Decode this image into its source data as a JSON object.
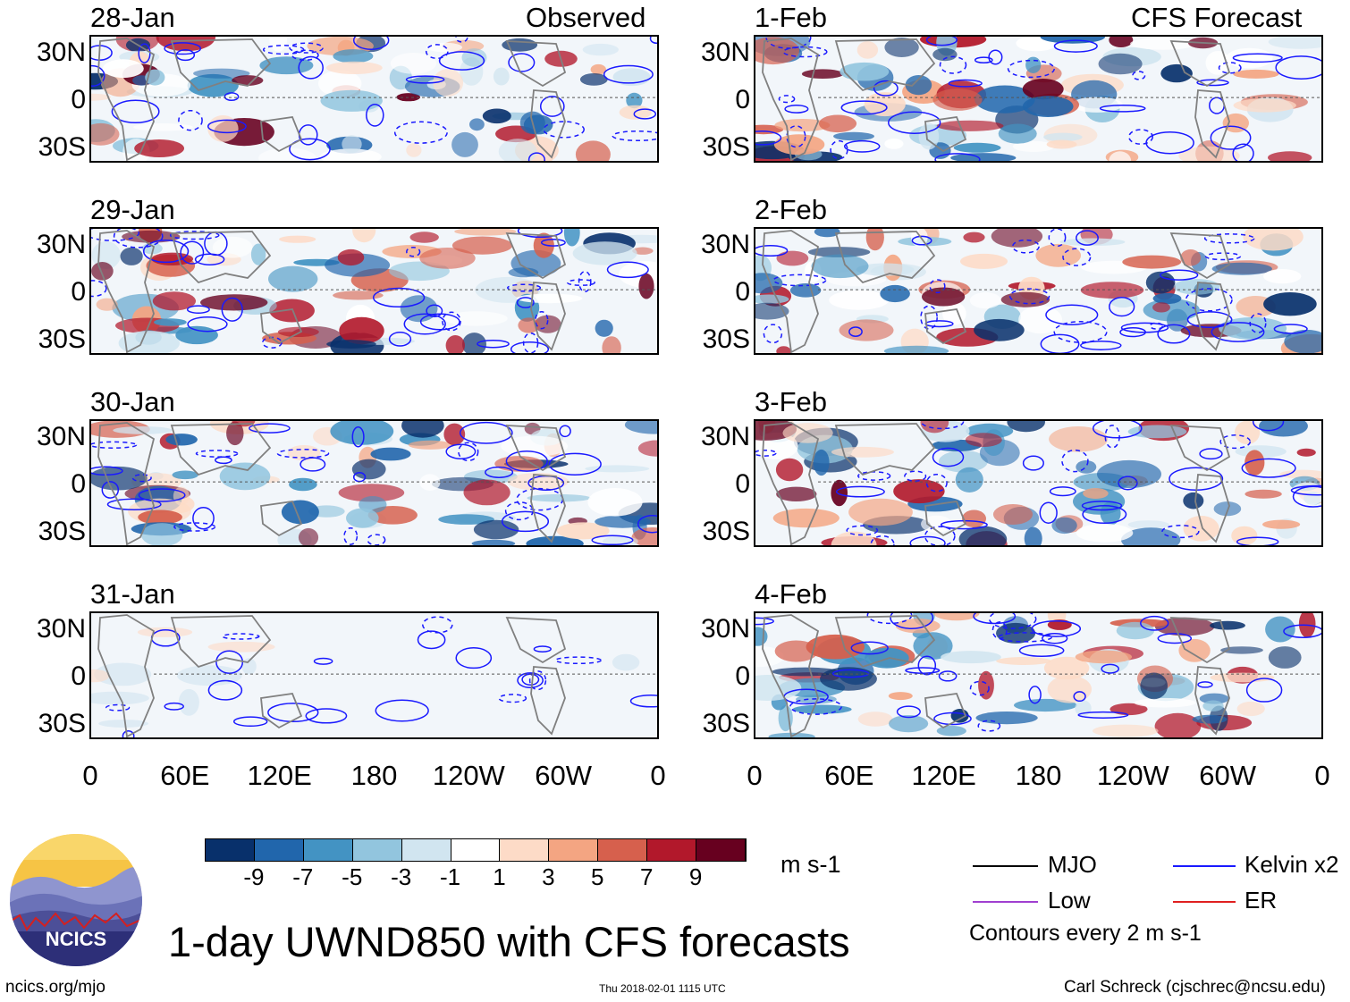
{
  "title": "1-day UWND850 with CFS forecasts",
  "panels_left": {
    "header_label": "Observed",
    "dates": [
      "28-Jan",
      "29-Jan",
      "30-Jan",
      "31-Jan"
    ]
  },
  "panels_right": {
    "header_label": "CFS Forecast",
    "dates": [
      "1-Feb",
      "2-Feb",
      "3-Feb",
      "4-Feb"
    ]
  },
  "lat_labels": [
    "30N",
    "0",
    "30S"
  ],
  "lon_labels": [
    "0",
    "60E",
    "120E",
    "180",
    "120W",
    "60W",
    "0"
  ],
  "colorbar": {
    "unit": "m s-1",
    "ticks": [
      "-9",
      "-7",
      "-5",
      "-3",
      "-1",
      "1",
      "3",
      "5",
      "7",
      "9"
    ],
    "colors": [
      "#08306b",
      "#2166ac",
      "#4393c3",
      "#92c5de",
      "#d1e5f0",
      "#ffffff",
      "#fddbc7",
      "#f4a582",
      "#d6604d",
      "#b2182b",
      "#67001f"
    ]
  },
  "legend": {
    "items": [
      {
        "label": "MJO",
        "color": "#000000"
      },
      {
        "label": "Kelvin x2",
        "color": "#1a1aff"
      },
      {
        "label": "Low",
        "color": "#a040d0"
      },
      {
        "label": "ER",
        "color": "#e02020"
      }
    ],
    "note": "Contours every 2 m s-1"
  },
  "logo": {
    "text": "NCICS"
  },
  "footer": {
    "left": "ncics.org/mjo",
    "center": "Thu 2018-02-01 1115 UTC",
    "right": "Carl Schreck (cjschrec@ncsu.edu)"
  }
}
